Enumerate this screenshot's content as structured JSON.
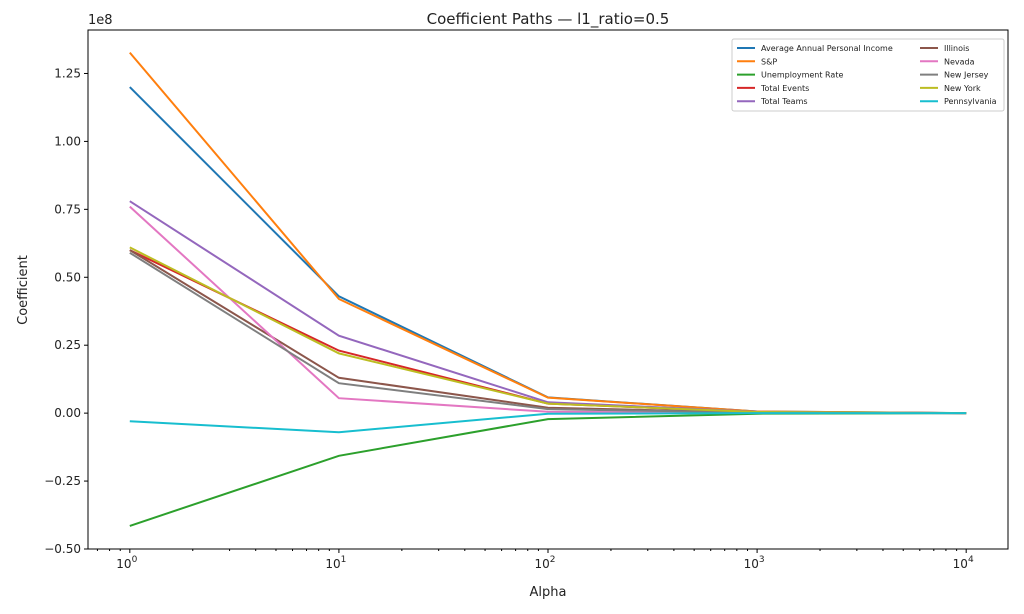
{
  "chart_data": {
    "type": "line",
    "title": "Coefficient Paths — l1_ratio=0.5",
    "xlabel": "Alpha",
    "ylabel": "Coefficient",
    "xscale": "log",
    "y_offset_label": "1e8",
    "x": [
      1,
      10,
      100,
      1000,
      10000
    ],
    "x_exponents": [
      0,
      1,
      2,
      3,
      4
    ],
    "xlim_log10": [
      -0.2,
      4.2
    ],
    "ylim": [
      -0.5,
      1.41
    ],
    "yticks": [
      -0.5,
      -0.25,
      0.0,
      0.25,
      0.5,
      0.75,
      1.0,
      1.25
    ],
    "ytick_labels": [
      "−0.50",
      "−0.25",
      "0.00",
      "0.25",
      "0.50",
      "0.75",
      "1.00",
      "1.25"
    ],
    "xtick_base": "10",
    "legend_placement": "top-right",
    "grid": false,
    "series": [
      {
        "name": "Average Annual Personal Income",
        "color": "#1f77b4",
        "values": [
          1.2,
          0.43,
          0.058,
          0.006,
          0.0
        ]
      },
      {
        "name": "S&P",
        "color": "#ff7f0e",
        "values": [
          1.327,
          0.42,
          0.057,
          0.006,
          0.0
        ]
      },
      {
        "name": "Unemployment Rate",
        "color": "#2ca02c",
        "values": [
          -0.415,
          -0.157,
          -0.022,
          -0.002,
          0.0
        ]
      },
      {
        "name": "Total Events",
        "color": "#d62728",
        "values": [
          0.6,
          0.23,
          0.035,
          0.004,
          0.0
        ]
      },
      {
        "name": "Total Teams",
        "color": "#9467bd",
        "values": [
          0.78,
          0.285,
          0.04,
          0.005,
          0.0
        ]
      },
      {
        "name": "Illinois",
        "color": "#8c564b",
        "values": [
          0.6,
          0.13,
          0.02,
          0.002,
          0.0
        ]
      },
      {
        "name": "Nevada",
        "color": "#e377c2",
        "values": [
          0.76,
          0.055,
          0.005,
          0.001,
          0.0
        ]
      },
      {
        "name": "New Jersey",
        "color": "#7f7f7f",
        "values": [
          0.59,
          0.11,
          0.015,
          0.002,
          0.0
        ]
      },
      {
        "name": "New York",
        "color": "#bcbd22",
        "values": [
          0.61,
          0.22,
          0.035,
          0.004,
          0.0
        ]
      },
      {
        "name": "Pennsylvania",
        "color": "#17becf",
        "values": [
          -0.03,
          -0.07,
          -0.002,
          0.0,
          0.0
        ]
      }
    ]
  }
}
